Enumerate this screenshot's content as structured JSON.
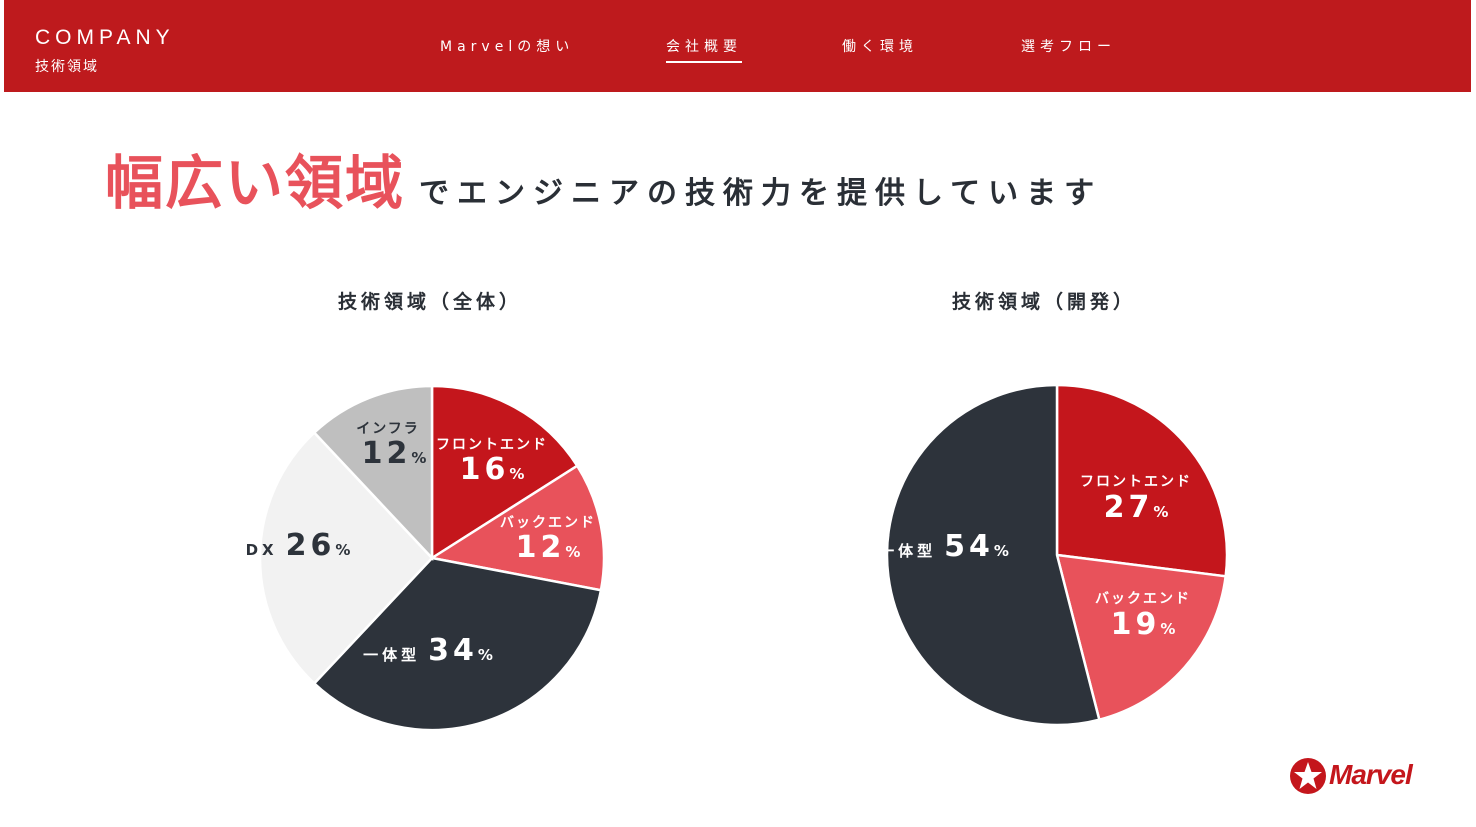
{
  "header": {
    "title": "COMPANY",
    "subtitle": "技術領域",
    "nav": [
      {
        "label": "Marvelの想い",
        "active": false
      },
      {
        "label": "会社概要",
        "active": true
      },
      {
        "label": "働く環境",
        "active": false
      },
      {
        "label": "選考フロー",
        "active": false
      }
    ]
  },
  "headline": {
    "highlight": "幅広い領域",
    "rest": "でエンジニアの技術力を提供しています"
  },
  "logo": {
    "text": "Marvel"
  },
  "colors": {
    "brand_red": "#be1a1d",
    "accent_pink": "#e8525b",
    "dark": "#2d333b",
    "light_gray": "#f2f2f2",
    "mid_gray": "#bfbfbf"
  },
  "chart_data": [
    {
      "type": "pie",
      "title": "技術領域（全体）",
      "slices": [
        {
          "name": "フロントエンド",
          "value": 16,
          "color": "#c4161c",
          "label_color": "#ffffff"
        },
        {
          "name": "バックエンド",
          "value": 12,
          "color": "#e8525b",
          "label_color": "#ffffff"
        },
        {
          "name": "一体型",
          "value": 34,
          "color": "#2d333b",
          "label_color": "#ffffff"
        },
        {
          "name": "DX",
          "value": 26,
          "color": "#f2f2f2",
          "label_color": "#2d333b"
        },
        {
          "name": "インフラ",
          "value": 12,
          "color": "#bfbfbf",
          "label_color": "#2d333b"
        }
      ],
      "unit": "%"
    },
    {
      "type": "pie",
      "title": "技術領域（開発）",
      "slices": [
        {
          "name": "フロントエンド",
          "value": 27,
          "color": "#c4161c",
          "label_color": "#ffffff"
        },
        {
          "name": "バックエンド",
          "value": 19,
          "color": "#e8525b",
          "label_color": "#ffffff"
        },
        {
          "name": "一体型",
          "value": 54,
          "color": "#2d333b",
          "label_color": "#ffffff"
        }
      ],
      "unit": "%"
    }
  ]
}
